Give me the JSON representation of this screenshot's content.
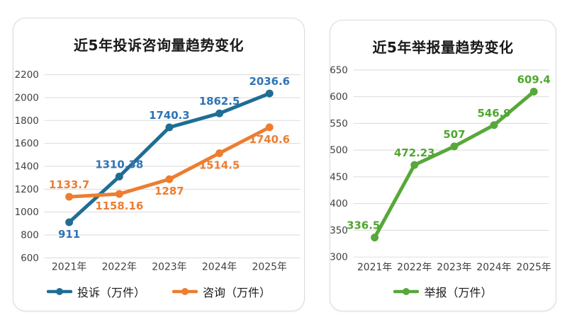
{
  "page": {
    "background": "#ffffff",
    "card_border_color": "#dadada",
    "gridline_color": "#d9d9d9"
  },
  "chart_data": [
    {
      "type": "line",
      "title": "近5年投诉咨询量趋势变化",
      "categories": [
        "2021年",
        "2022年",
        "2023年",
        "2024年",
        "2025年"
      ],
      "series": [
        {
          "name": "投诉（万件）",
          "color": "#1f6d94",
          "label_color": "#2e74b5",
          "values": [
            911,
            1310.38,
            1740.3,
            1862.5,
            2036.6
          ],
          "label_pos": [
            "below",
            "above",
            "above",
            "above",
            "above"
          ]
        },
        {
          "name": "咨询（万件）",
          "color": "#ed7d31",
          "label_color": "#ed7d31",
          "values": [
            1133.7,
            1158.16,
            1287,
            1514.5,
            1740.6
          ],
          "label_pos": [
            "above",
            "below",
            "below",
            "below",
            "below"
          ]
        }
      ],
      "xlabel": "",
      "ylabel": "",
      "ylim": [
        600,
        2200
      ],
      "ytick_step": 200,
      "grid": true,
      "legend_position": "bottom"
    },
    {
      "type": "line",
      "title": "近5年举报量趋势变化",
      "categories": [
        "2021年",
        "2022年",
        "2023年",
        "2024年",
        "2025年"
      ],
      "series": [
        {
          "name": "举报（万件）",
          "color": "#57a83a",
          "label_color": "#4ea72e",
          "values": [
            336.5,
            472.23,
            507,
            546.9,
            609.4
          ],
          "label_pos": [
            "above-left",
            "above",
            "above",
            "above",
            "above"
          ]
        }
      ],
      "xlabel": "",
      "ylabel": "",
      "ylim": [
        300,
        650
      ],
      "ytick_step": 50,
      "grid": true,
      "legend_position": "bottom"
    }
  ]
}
